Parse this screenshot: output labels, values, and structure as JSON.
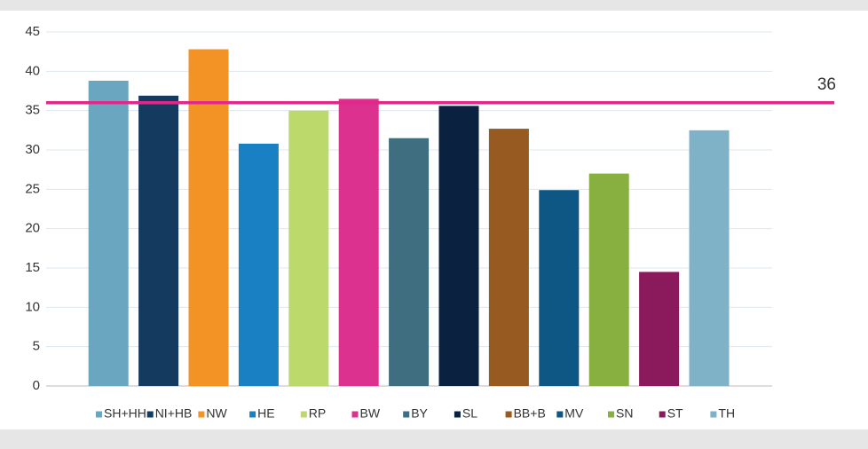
{
  "chart_data": {
    "type": "bar",
    "categories": [
      "SH+HH",
      "NI+HB",
      "NW",
      "HE",
      "RP",
      "BW",
      "BY",
      "SL",
      "BB+B",
      "MV",
      "SN",
      "ST",
      "TH"
    ],
    "values": [
      38.8,
      36.9,
      42.8,
      30.8,
      35,
      36.5,
      31.5,
      35.6,
      32.7,
      24.9,
      27,
      14.5,
      32.5
    ],
    "colors": [
      "#6aa6c0",
      "#153a60",
      "#f39325",
      "#1a80c4",
      "#bcd96c",
      "#dd3190",
      "#3f6e80",
      "#0a2240",
      "#975a20",
      "#0e5784",
      "#88b040",
      "#8a1a5c",
      "#7fb2c7"
    ],
    "ylim": [
      0,
      45
    ],
    "yticks": [
      0,
      5,
      10,
      15,
      20,
      25,
      30,
      35,
      40,
      45
    ],
    "grid": true,
    "reference_line": {
      "value": 36,
      "color": "#e0288a"
    },
    "legend": "bottom"
  }
}
